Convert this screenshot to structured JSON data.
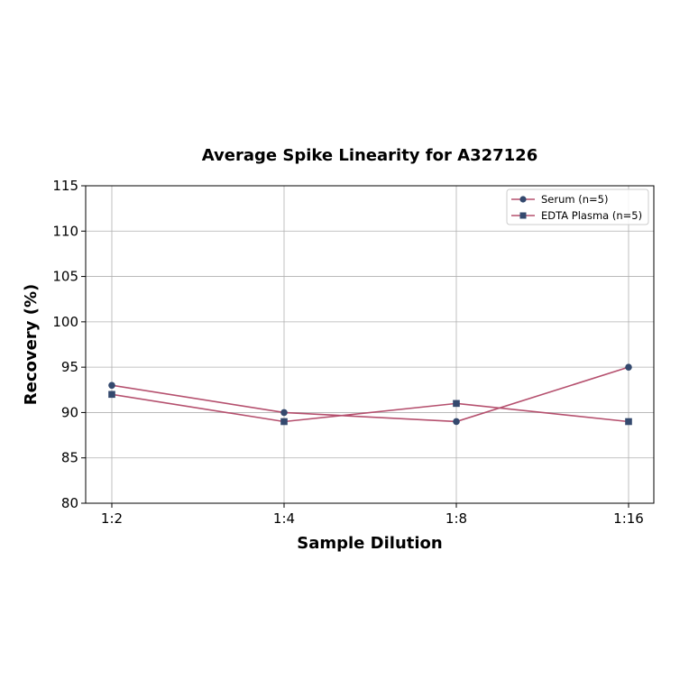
{
  "chart_data": {
    "type": "line",
    "title": "Average Spike Linearity for A327126",
    "xlabel": "Sample Dilution",
    "ylabel": "Recovery (%)",
    "categories": [
      "1:2",
      "1:4",
      "1:8",
      "1:16"
    ],
    "series": [
      {
        "name": "Serum (n=5)",
        "marker": "circle",
        "values": [
          93,
          90,
          89,
          95
        ]
      },
      {
        "name": "EDTA Plasma (n=5)",
        "marker": "square",
        "values": [
          92,
          89,
          91,
          89
        ]
      }
    ],
    "ylim": [
      80,
      115
    ],
    "yticks": [
      80,
      85,
      90,
      95,
      100,
      105,
      110,
      115
    ],
    "grid": true,
    "legend_position": "upper right",
    "colors": {
      "line": "#b5506e",
      "marker": "#34496e"
    }
  }
}
